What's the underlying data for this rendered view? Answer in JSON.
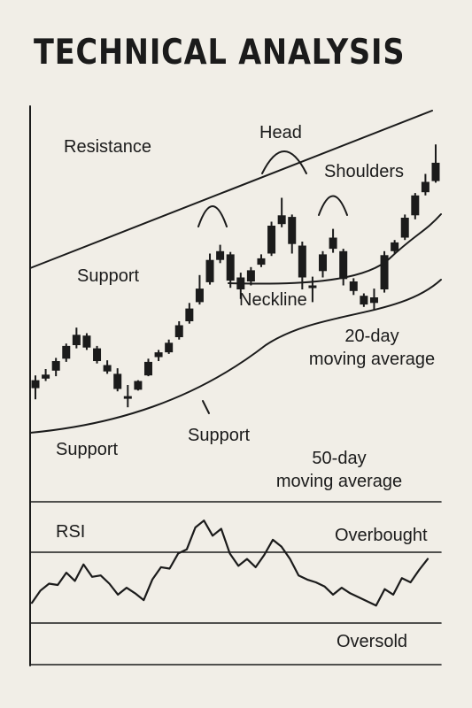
{
  "title": "TECHNICAL ANALYSIS",
  "labels": {
    "resistance": "Resistance",
    "head": "Head",
    "shoulders": "Shoulders",
    "support_upper": "Support",
    "neckline": "Neckline",
    "ma20": "20-day\nmoving average",
    "support_lower_left": "Support",
    "support_lower_mid": "Support",
    "ma50": "50-day\nmoving average",
    "rsi": "RSI",
    "overbought": "Overbought",
    "oversold": "Oversold"
  },
  "colors": {
    "ink": "#1b1b1b",
    "background": "#f1eee7"
  },
  "chart_data": [
    {
      "type": "candlestick",
      "title": "TECHNICAL ANALYSIS",
      "note": "illustrative head-and-shoulders pattern; no numeric axes printed",
      "candles": [
        {
          "o": 2.6,
          "c": 3.6,
          "h": 4.2,
          "l": 1.2
        },
        {
          "o": 3.8,
          "c": 4.3,
          "h": 5.0,
          "l": 3.5
        },
        {
          "o": 4.8,
          "c": 6.0,
          "h": 6.4,
          "l": 4.1
        },
        {
          "o": 6.3,
          "c": 7.9,
          "h": 8.2,
          "l": 5.9
        },
        {
          "o": 8.0,
          "c": 9.3,
          "h": 10.2,
          "l": 7.6
        },
        {
          "o": 9.2,
          "c": 7.7,
          "h": 9.5,
          "l": 7.4
        },
        {
          "o": 7.6,
          "c": 6.0,
          "h": 7.9,
          "l": 5.7
        },
        {
          "o": 5.5,
          "c": 4.7,
          "h": 6.1,
          "l": 4.4
        },
        {
          "o": 4.4,
          "c": 2.5,
          "h": 5.1,
          "l": 2.2
        },
        {
          "o": 1.6,
          "c": 1.5,
          "h": 3.0,
          "l": 0.2
        },
        {
          "o": 2.4,
          "c": 3.5,
          "h": 3.6,
          "l": 2.3
        },
        {
          "o": 4.2,
          "c": 5.9,
          "h": 6.3,
          "l": 4.1
        },
        {
          "o": 6.5,
          "c": 7.1,
          "h": 7.4,
          "l": 6.0
        },
        {
          "o": 7.1,
          "c": 8.3,
          "h": 8.7,
          "l": 6.9
        },
        {
          "o": 9.0,
          "c": 10.5,
          "h": 11.0,
          "l": 8.7
        },
        {
          "o": 11.0,
          "c": 12.6,
          "h": 13.3,
          "l": 10.7
        },
        {
          "o": 13.4,
          "c": 15.1,
          "h": 16.8,
          "l": 13.1
        },
        {
          "o": 15.9,
          "c": 18.7,
          "h": 19.5,
          "l": 15.6
        },
        {
          "o": 18.7,
          "c": 19.8,
          "h": 20.6,
          "l": 18.3
        },
        {
          "o": 19.4,
          "c": 16.1,
          "h": 19.7,
          "l": 15.2
        },
        {
          "o": 16.5,
          "c": 15.0,
          "h": 17.1,
          "l": 13.8
        },
        {
          "o": 16.0,
          "c": 17.4,
          "h": 17.8,
          "l": 15.5
        },
        {
          "o": 18.1,
          "c": 18.9,
          "h": 19.4,
          "l": 17.8
        },
        {
          "o": 19.5,
          "c": 23.0,
          "h": 23.5,
          "l": 19.2
        },
        {
          "o": 23.2,
          "c": 24.3,
          "h": 26.5,
          "l": 22.8
        },
        {
          "o": 24.1,
          "c": 20.7,
          "h": 24.4,
          "l": 19.5
        },
        {
          "o": 20.5,
          "c": 16.5,
          "h": 21.0,
          "l": 15.0
        },
        {
          "o": 15.5,
          "c": 15.2,
          "h": 16.6,
          "l": 13.4
        },
        {
          "o": 17.3,
          "c": 19.4,
          "h": 19.8,
          "l": 16.5
        },
        {
          "o": 20.1,
          "c": 21.5,
          "h": 22.6,
          "l": 19.6
        },
        {
          "o": 19.8,
          "c": 16.3,
          "h": 20.1,
          "l": 15.5
        },
        {
          "o": 16.0,
          "c": 14.8,
          "h": 16.4,
          "l": 14.3
        },
        {
          "o": 14.2,
          "c": 13.1,
          "h": 14.5,
          "l": 12.8
        },
        {
          "o": 13.3,
          "c": 14.0,
          "h": 15.1,
          "l": 12.4
        },
        {
          "o": 15.0,
          "c": 19.3,
          "h": 19.8,
          "l": 14.6
        },
        {
          "o": 19.8,
          "c": 20.9,
          "h": 21.2,
          "l": 19.5
        },
        {
          "o": 21.5,
          "c": 24.0,
          "h": 24.4,
          "l": 21.2
        },
        {
          "o": 24.3,
          "c": 26.8,
          "h": 27.1,
          "l": 23.8
        },
        {
          "o": 27.2,
          "c": 28.5,
          "h": 29.5,
          "l": 26.8
        },
        {
          "o": 28.6,
          "c": 30.9,
          "h": 33.2,
          "l": 28.4
        }
      ],
      "annotations": [
        "Resistance",
        "Head",
        "Shoulders",
        "Support",
        "Neckline",
        "20-day moving average",
        "Support",
        "Support",
        "50-day moving average"
      ]
    },
    {
      "type": "line",
      "title": "RSI",
      "note": "oscillator with overbought and oversold bands; no numeric axes printed",
      "ylim": [
        0,
        100
      ],
      "overbought": 70,
      "oversold": 30,
      "values": [
        36,
        45,
        50,
        49,
        58,
        52,
        64,
        55,
        56,
        50,
        42,
        47,
        43,
        38,
        53,
        62,
        61,
        72,
        75,
        91,
        96,
        85,
        90,
        72,
        63,
        68,
        62,
        71,
        82,
        77,
        68,
        56,
        53,
        51,
        48,
        42,
        47,
        43,
        40,
        37,
        34,
        46,
        42,
        54,
        51,
        60,
        68
      ]
    }
  ]
}
